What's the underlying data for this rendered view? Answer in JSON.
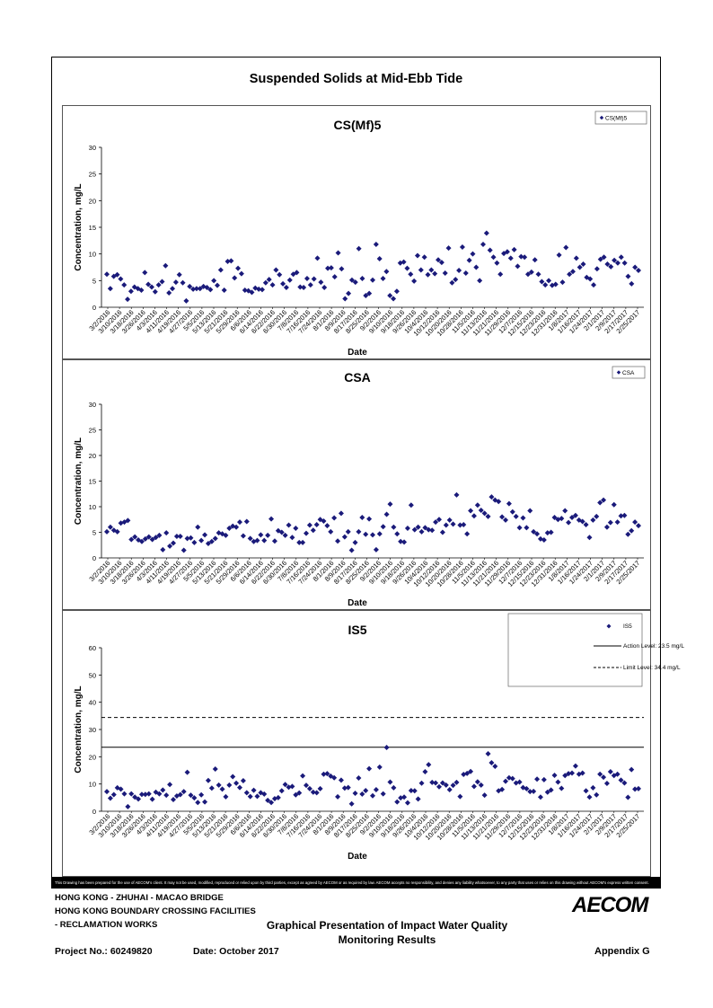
{
  "page_title": "Suspended Solids at Mid-Ebb Tide",
  "disclaimer": "This Drawing has been prepared for the use of AECOM's client. It may not be used, modified, reproduced or relied upon by third parties, except as agreed by AECOM or as required by law. AECOM accepts no responsibility, and denies any liability whatsoever, to any party that uses or relies on this drawing without AECOM's express written consent.",
  "footer": {
    "line1": "HONG KONG - ZHUHAI - MACAO BRIDGE",
    "line2": "HONG KONG BOUNDARY CROSSING FACILITIES",
    "line3": "- RECLAMATION WORKS",
    "subtitle_line1": "Graphical Presentation of Impact Water Quality",
    "subtitle_line2": "Monitoring Results",
    "project": "Project No.: 60249820",
    "date": "Date: October 2017",
    "appendix": "Appendix G",
    "logo": "AECOM"
  },
  "chart_data": [
    {
      "type": "scatter",
      "title": "CS(Mf)5",
      "xlabel": "Date",
      "ylabel": "Concentration, mg/L",
      "ylim": [
        0,
        30
      ],
      "yticks": [
        0,
        5,
        10,
        15,
        20,
        25,
        30
      ],
      "x_tick_labels": [
        "3/2/2016",
        "3/10/2016",
        "3/18/2016",
        "3/26/2016",
        "4/3/2016",
        "4/11/2016",
        "4/19/2016",
        "4/27/2016",
        "5/5/2016",
        "5/13/2016",
        "5/21/2016",
        "5/29/2016",
        "6/6/2016",
        "6/14/2016",
        "6/22/2016",
        "6/30/2016",
        "7/8/2016",
        "7/16/2016",
        "7/24/2016",
        "8/1/2016",
        "8/9/2016",
        "8/17/2016",
        "8/25/2016",
        "9/2/2016",
        "9/10/2016",
        "9/18/2016",
        "9/26/2016",
        "10/4/2016",
        "10/12/2016",
        "10/20/2016",
        "10/28/2016",
        "11/5/2016",
        "11/13/2016",
        "11/21/2016",
        "11/29/2016",
        "12/7/2016",
        "12/15/2016",
        "12/23/2016",
        "12/31/2016",
        "1/8/2017",
        "1/16/2017",
        "1/24/2017",
        "2/1/2017",
        "2/9/2017",
        "2/17/2017",
        "2/25/2017"
      ],
      "legend": "top-right",
      "series": [
        {
          "name": "CS(Mf)5",
          "color": "#1a1a7a",
          "values": [
            6.2,
            3.5,
            5.8,
            6.1,
            5.3,
            4.2,
            1.5,
            3.0,
            3.8,
            3.5,
            3.2,
            6.5,
            4.3,
            3.8,
            2.9,
            4.2,
            4.8,
            7.8,
            2.7,
            3.5,
            4.7,
            6.1,
            4.6,
            1.2,
            3.9,
            3.4,
            3.5,
            3.5,
            3.9,
            3.7,
            3.3,
            5.0,
            4.1,
            7.0,
            3.2,
            8.6,
            8.7,
            5.5,
            7.3,
            6.3,
            3.2,
            3.1,
            2.8,
            3.6,
            3.4,
            3.3,
            4.6,
            5.2,
            4.2,
            7.0,
            6.1,
            4.4,
            3.7,
            5.1,
            6.2,
            6.5,
            3.8,
            3.7,
            5.4,
            4.2,
            5.3,
            9.2,
            4.7,
            3.7,
            7.3,
            7.4,
            5.7,
            10.2,
            7.2,
            1.6,
            2.6,
            5.1,
            4.7,
            11.0,
            5.4,
            2.2,
            2.6,
            5.1,
            11.8,
            9.1,
            5.4,
            6.7,
            2.2,
            1.6,
            3.0,
            8.3,
            8.5,
            7.3,
            6.2,
            4.9,
            9.7,
            7.0,
            9.4,
            6.1,
            7.0,
            6.3,
            8.9,
            8.4,
            6.4,
            11.1,
            4.6,
            5.2,
            6.9,
            11.3,
            6.4,
            8.8,
            10.0,
            7.5,
            5.0,
            11.8,
            13.9,
            10.7,
            9.4,
            8.3,
            6.2,
            10.1,
            10.4,
            9.2,
            10.8,
            7.7,
            9.5,
            9.4,
            6.2,
            6.6,
            8.9,
            6.2,
            4.8,
            4.2,
            5.0,
            4.1,
            4.3,
            9.8,
            4.7,
            11.2,
            6.2,
            6.7,
            9.2,
            7.5,
            8.1,
            5.6,
            5.3,
            4.2,
            7.2,
            9.0,
            9.4,
            8.1,
            7.6,
            8.8,
            8.3,
            9.4,
            8.3,
            5.8,
            4.4,
            7.5,
            6.9
          ]
        }
      ]
    },
    {
      "type": "scatter",
      "title": "CSA",
      "xlabel": "Date",
      "ylabel": "Concentration, mg/L",
      "ylim": [
        0,
        30
      ],
      "yticks": [
        0,
        5,
        10,
        15,
        20,
        25,
        30
      ],
      "x_tick_labels": [
        "3/2/2016",
        "3/10/2016",
        "3/18/2016",
        "3/26/2016",
        "4/3/2016",
        "4/11/2016",
        "4/19/2016",
        "4/27/2016",
        "5/5/2016",
        "5/13/2016",
        "5/21/2016",
        "5/29/2016",
        "6/6/2016",
        "6/14/2016",
        "6/22/2016",
        "6/30/2016",
        "7/8/2016",
        "7/16/2016",
        "7/24/2016",
        "8/1/2016",
        "8/9/2016",
        "8/17/2016",
        "8/25/2016",
        "9/2/2016",
        "9/10/2016",
        "9/18/2016",
        "9/26/2016",
        "10/4/2016",
        "10/12/2016",
        "10/20/2016",
        "10/28/2016",
        "11/5/2016",
        "11/13/2016",
        "11/21/2016",
        "11/29/2016",
        "12/7/2016",
        "12/15/2016",
        "12/23/2016",
        "12/31/2016",
        "1/8/2017",
        "1/16/2017",
        "1/24/2017",
        "2/1/2017",
        "2/9/2017",
        "2/17/2017",
        "2/25/2017"
      ],
      "legend": "top-right",
      "series": [
        {
          "name": "CSA",
          "color": "#1a1a7a",
          "values": [
            5.1,
            6.0,
            5.4,
            5.1,
            6.8,
            7.0,
            7.3,
            3.6,
            4.1,
            3.5,
            3.2,
            3.7,
            4.1,
            3.6,
            4.0,
            4.4,
            1.6,
            4.9,
            2.3,
            2.9,
            4.2,
            4.2,
            1.5,
            3.8,
            3.9,
            3.0,
            6.0,
            3.4,
            4.5,
            2.8,
            3.2,
            3.8,
            4.9,
            4.7,
            4.4,
            5.8,
            6.2,
            6.0,
            7.0,
            4.3,
            7.1,
            3.8,
            3.2,
            3.4,
            4.5,
            3.4,
            4.4,
            7.6,
            3.3,
            5.3,
            5.0,
            4.4,
            6.4,
            4.0,
            5.8,
            3.0,
            3.0,
            4.8,
            6.4,
            5.4,
            6.5,
            7.5,
            7.2,
            6.3,
            5.1,
            7.8,
            3.3,
            8.7,
            4.1,
            5.1,
            1.5,
            3.0,
            5.1,
            7.9,
            4.6,
            7.6,
            4.5,
            1.6,
            4.7,
            6.1,
            8.5,
            10.5,
            6.0,
            4.7,
            3.2,
            3.1,
            5.8,
            10.3,
            5.5,
            6.0,
            5.1,
            5.9,
            5.5,
            5.4,
            7.0,
            7.5,
            5.0,
            6.4,
            7.4,
            6.6,
            12.3,
            6.4,
            6.5,
            4.7,
            9.2,
            8.2,
            10.3,
            9.3,
            8.7,
            8.1,
            11.9,
            11.3,
            11.0,
            8.0,
            7.4,
            10.6,
            9.0,
            8.1,
            5.9,
            7.8,
            5.9,
            9.2,
            5.1,
            4.7,
            3.7,
            3.5,
            4.9,
            5.0,
            7.9,
            7.5,
            7.7,
            9.2,
            6.9,
            7.9,
            8.3,
            7.4,
            7.1,
            6.5,
            4.0,
            7.4,
            8.1,
            10.8,
            11.3,
            6.0,
            6.9,
            10.4,
            7.0,
            8.2,
            8.3,
            4.6,
            5.3,
            7.0,
            6.3
          ]
        }
      ]
    },
    {
      "type": "scatter",
      "title": "IS5",
      "xlabel": "Date",
      "ylabel": "Concentration, mg/L",
      "ylim": [
        0,
        60
      ],
      "yticks": [
        0,
        10,
        20,
        30,
        40,
        50,
        60
      ],
      "x_tick_labels": [
        "3/2/2016",
        "3/10/2016",
        "3/18/2016",
        "3/26/2016",
        "4/3/2016",
        "4/11/2016",
        "4/19/2016",
        "4/27/2016",
        "5/5/2016",
        "5/13/2016",
        "5/21/2016",
        "5/29/2016",
        "6/6/2016",
        "6/14/2016",
        "6/22/2016",
        "6/30/2016",
        "7/8/2016",
        "7/16/2016",
        "7/24/2016",
        "8/1/2016",
        "8/9/2016",
        "8/17/2016",
        "8/25/2016",
        "9/2/2016",
        "9/10/2016",
        "9/18/2016",
        "9/26/2016",
        "10/4/2016",
        "10/12/2016",
        "10/20/2016",
        "10/28/2016",
        "11/5/2016",
        "11/13/2016",
        "11/21/2016",
        "11/29/2016",
        "12/7/2016",
        "12/15/2016",
        "12/23/2016",
        "12/31/2016",
        "1/8/2017",
        "1/16/2017",
        "1/24/2017",
        "2/1/2017",
        "2/9/2017",
        "2/17/2017",
        "2/25/2017"
      ],
      "legend": "top-right",
      "series": [
        {
          "name": "IS5",
          "color": "#1a1a7a",
          "values": [
            7.2,
            4.8,
            6.1,
            8.6,
            8.1,
            6.4,
            1.7,
            6.4,
            5.2,
            4.5,
            6.2,
            6.2,
            6.4,
            4.4,
            7.0,
            6.4,
            7.8,
            5.9,
            9.8,
            4.3,
            5.6,
            6.1,
            7.2,
            14.3,
            5.9,
            4.9,
            3.2,
            6.0,
            3.4,
            11.3,
            8.5,
            15.5,
            9.6,
            8.1,
            5.3,
            9.6,
            12.7,
            10.3,
            8.7,
            11.2,
            6.8,
            5.4,
            7.7,
            5.5,
            6.8,
            6.3,
            4.0,
            3.2,
            4.6,
            5.0,
            7.5,
            9.8,
            8.8,
            9.1,
            6.0,
            6.7,
            13.0,
            9.5,
            8.3,
            7.0,
            6.8,
            8.3,
            13.6,
            13.8,
            12.9,
            12.3,
            5.3,
            11.4,
            8.5,
            8.7,
            2.7,
            6.6,
            12.2,
            6.3,
            7.6,
            15.6,
            5.7,
            7.9,
            16.2,
            6.4,
            23.4,
            10.7,
            8.6,
            3.4,
            4.9,
            5.2,
            3.1,
            7.6,
            7.5,
            4.5,
            10.3,
            14.5,
            17.1,
            10.6,
            10.4,
            9.0,
            10.4,
            9.6,
            7.9,
            9.5,
            10.6,
            5.4,
            13.5,
            13.9,
            14.6,
            9.1,
            10.8,
            9.6,
            5.9,
            21.1,
            17.8,
            16.5,
            7.5,
            8.0,
            11.0,
            12.3,
            12.0,
            10.4,
            10.7,
            8.7,
            8.3,
            7.2,
            7.3,
            11.8,
            5.2,
            11.6,
            7.0,
            7.8,
            13.2,
            10.7,
            8.4,
            13.1,
            13.8,
            14.0,
            16.6,
            13.6,
            14.0,
            7.5,
            5.2,
            8.6,
            6.0,
            13.6,
            12.5,
            10.2,
            14.5,
            13.1,
            13.6,
            11.4,
            10.4,
            5.1,
            15.3,
            8.1,
            8.3
          ]
        },
        {
          "name": "Action Level: 23.5 mg/L",
          "level": 23.5,
          "style": "solid"
        },
        {
          "name": "Limit Level: 34.4 mg/L",
          "level": 34.4,
          "style": "dashed"
        }
      ]
    }
  ]
}
